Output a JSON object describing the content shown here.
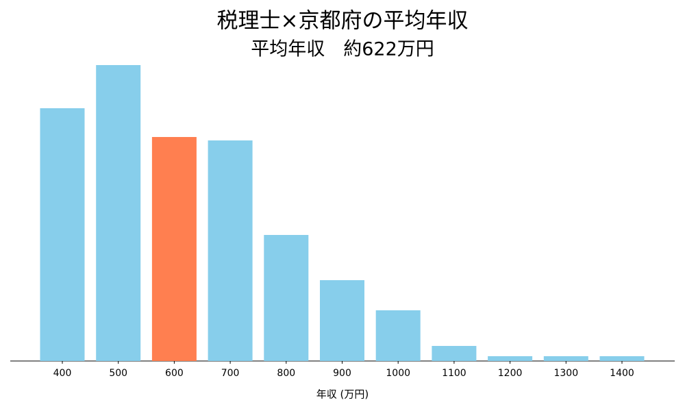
{
  "chart_data": {
    "type": "bar",
    "title": "税理士×京都府の平均年収",
    "subtitle": "平均年収　約622万円",
    "x_label": "年収 (万円)",
    "categories": [
      "400",
      "500",
      "600",
      "700",
      "800",
      "900",
      "1000",
      "1100",
      "1200",
      "1300",
      "1400"
    ],
    "values": [
      369,
      432,
      327,
      322,
      184,
      118,
      74,
      22,
      7,
      7,
      7
    ],
    "colors": [
      "#87ceeb",
      "#87ceeb",
      "#ff7f50",
      "#87ceeb",
      "#87ceeb",
      "#87ceeb",
      "#87ceeb",
      "#87ceeb",
      "#87ceeb",
      "#87ceeb",
      "#87ceeb"
    ],
    "ylim": [
      0,
      450
    ]
  }
}
